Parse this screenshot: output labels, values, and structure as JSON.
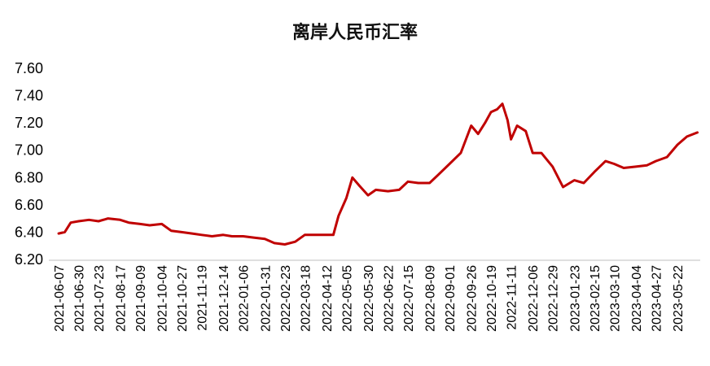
{
  "chart_data": {
    "type": "line",
    "title": "离岸人民币汇率",
    "xlabel": "",
    "ylabel": "",
    "ylim": [
      6.2,
      7.6
    ],
    "y_ticks": [
      "7.60",
      "7.40",
      "7.20",
      "7.00",
      "6.80",
      "6.60",
      "6.40",
      "6.20"
    ],
    "x_tick_labels": [
      "2021-06-07",
      "2021-06-30",
      "2021-07-23",
      "2021-08-17",
      "2021-09-09",
      "2021-10-04",
      "2021-10-27",
      "2021-11-19",
      "2021-12-14",
      "2022-01-06",
      "2022-01-31",
      "2022-02-23",
      "2022-03-18",
      "2022-04-12",
      "2022-05-05",
      "2022-05-30",
      "2022-06-22",
      "2022-07-15",
      "2022-08-09",
      "2022-09-01",
      "2022-09-26",
      "2022-10-19",
      "2022-11-11",
      "2022-12-06",
      "2022-12-29",
      "2023-01-23",
      "2023-02-15",
      "2023-03-10",
      "2023-04-04",
      "2023-04-27",
      "2023-05-22"
    ],
    "grid": false,
    "legend": "none",
    "line_color": "#C00000",
    "series": [
      {
        "x": [
          "2021-06-07",
          "2021-06-14",
          "2021-06-21",
          "2021-06-30",
          "2021-07-12",
          "2021-07-23",
          "2021-08-03",
          "2021-08-17",
          "2021-08-27",
          "2021-09-09",
          "2021-09-20",
          "2021-10-04",
          "2021-10-15",
          "2021-10-27",
          "2021-11-08",
          "2021-11-19",
          "2021-12-01",
          "2021-12-14",
          "2021-12-24",
          "2022-01-06",
          "2022-01-18",
          "2022-01-31",
          "2022-02-11",
          "2022-02-23",
          "2022-03-07",
          "2022-03-18",
          "2022-03-30",
          "2022-04-12",
          "2022-04-20",
          "2022-04-26",
          "2022-05-05",
          "2022-05-12",
          "2022-05-20",
          "2022-05-30",
          "2022-06-08",
          "2022-06-22",
          "2022-07-05",
          "2022-07-15",
          "2022-07-27",
          "2022-08-09",
          "2022-08-19",
          "2022-09-01",
          "2022-09-14",
          "2022-09-26",
          "2022-10-04",
          "2022-10-12",
          "2022-10-19",
          "2022-10-26",
          "2022-11-01",
          "2022-11-07",
          "2022-11-11",
          "2022-11-18",
          "2022-11-28",
          "2022-12-06",
          "2022-12-16",
          "2022-12-29",
          "2023-01-10",
          "2023-01-23",
          "2023-02-03",
          "2023-02-15",
          "2023-02-28",
          "2023-03-10",
          "2023-03-21",
          "2023-04-04",
          "2023-04-17",
          "2023-04-27",
          "2023-05-10",
          "2023-05-22",
          "2023-06-02",
          "2023-06-14"
        ],
        "values": [
          6.39,
          6.4,
          6.47,
          6.48,
          6.49,
          6.48,
          6.5,
          6.49,
          6.47,
          6.46,
          6.45,
          6.46,
          6.41,
          6.4,
          6.39,
          6.38,
          6.37,
          6.38,
          6.37,
          6.37,
          6.36,
          6.35,
          6.32,
          6.31,
          6.33,
          6.38,
          6.38,
          6.38,
          6.38,
          6.52,
          6.65,
          6.8,
          6.74,
          6.67,
          6.71,
          6.7,
          6.71,
          6.77,
          6.76,
          6.76,
          6.82,
          6.9,
          6.98,
          7.18,
          7.12,
          7.2,
          7.28,
          7.3,
          7.34,
          7.22,
          7.08,
          7.18,
          7.14,
          6.98,
          6.98,
          6.88,
          6.73,
          6.78,
          6.76,
          6.84,
          6.92,
          6.9,
          6.87,
          6.88,
          6.89,
          6.92,
          6.95,
          7.04,
          7.1,
          7.13
        ]
      }
    ]
  }
}
